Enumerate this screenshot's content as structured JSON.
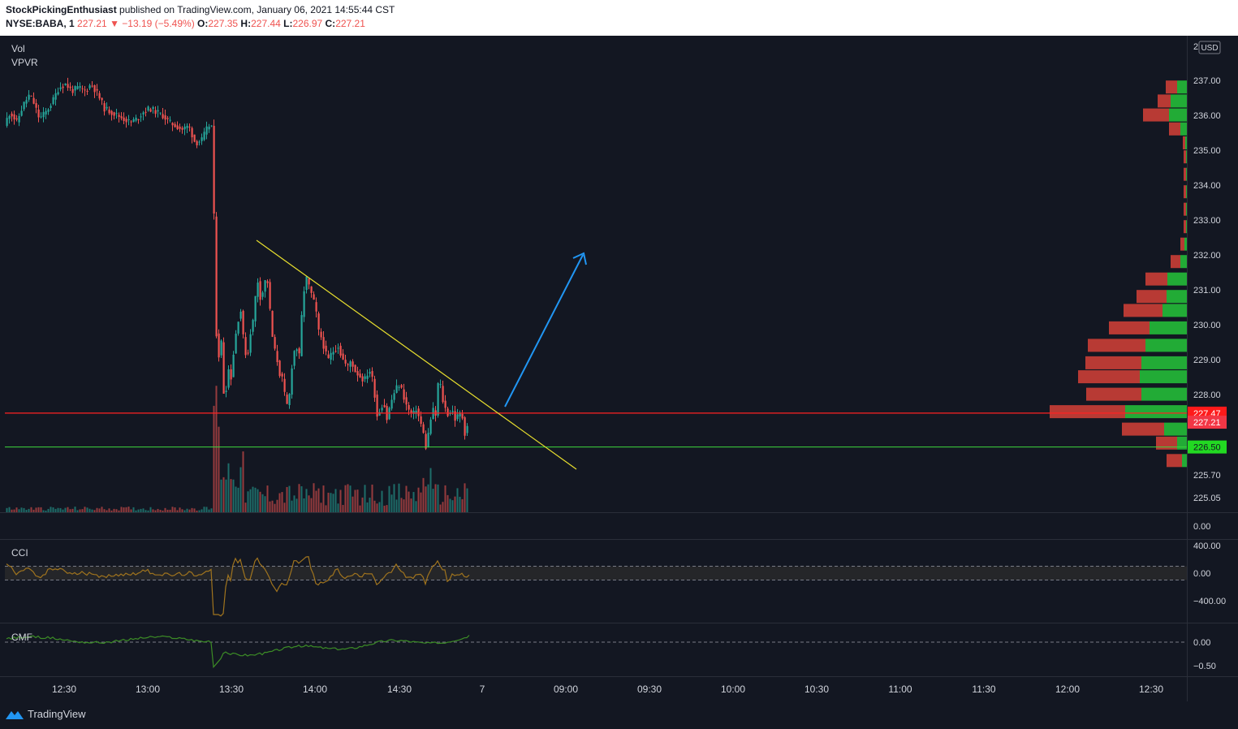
{
  "header": {
    "author": "StockPickingEnthusiast",
    "published": "published on TradingView.com, January 06, 2021 14:55:44 CST",
    "symbol": "NYSE:BABA, 1",
    "last": "227.21",
    "change": "▼ −13.19 (−5.49%)",
    "o_label": "O:",
    "o_value": "227.35",
    "h_label": "H:",
    "h_value": "227.44",
    "l_label": "L:",
    "l_value": "226.97",
    "c_label": "C:",
    "c_value": "227.21"
  },
  "indicators": {
    "vol": "Vol",
    "vpvr": "VPVR",
    "cci": "CCI",
    "cmf": "CMF"
  },
  "currency": "USD",
  "footer": {
    "brand": "TradingView",
    "logo_icon": "tradingview-logo-icon"
  },
  "colors": {
    "up": "#26a69a",
    "down": "#ef5350",
    "vp_up": "#22ab36",
    "vp_down": "#b83a34",
    "resistance": "#ff2222",
    "support": "#3ed63e",
    "trendline": "#e8df2e",
    "arrow": "#2196f3",
    "cci": "#a0741e",
    "cmf": "#3c8c26"
  },
  "chart_data": {
    "type": "candlestick",
    "price_axis": {
      "ticks": [
        "237.00",
        "236.00",
        "235.00",
        "234.00",
        "233.00",
        "232.00",
        "231.00",
        "230.00",
        "229.00",
        "228.00",
        "225.70",
        "225.05"
      ],
      "top_tick": "2",
      "ylim": [
        225.0,
        237.3
      ]
    },
    "time_axis": {
      "ticks": [
        "12:30",
        "13:00",
        "13:30",
        "14:00",
        "14:30",
        "7",
        "09:00",
        "09:30",
        "10:00",
        "10:30",
        "11:00",
        "11:30",
        "12:00",
        "12:30"
      ]
    },
    "price_path": [
      [
        0,
        235.2
      ],
      [
        6,
        235.8
      ],
      [
        12,
        236.1
      ],
      [
        20,
        235.8
      ],
      [
        28,
        236.3
      ],
      [
        36,
        236.6
      ],
      [
        42,
        236.3
      ],
      [
        48,
        235.9
      ],
      [
        56,
        236.1
      ],
      [
        64,
        236.4
      ],
      [
        72,
        236.8
      ],
      [
        80,
        236.9
      ],
      [
        88,
        236.7
      ],
      [
        96,
        236.8
      ],
      [
        104,
        236.7
      ],
      [
        112,
        236.9
      ],
      [
        120,
        236.6
      ],
      [
        128,
        236.2
      ],
      [
        136,
        236.1
      ],
      [
        144,
        236.0
      ],
      [
        152,
        235.9
      ],
      [
        160,
        235.8
      ],
      [
        168,
        235.9
      ],
      [
        176,
        236.1
      ],
      [
        184,
        236.2
      ],
      [
        192,
        236.1
      ],
      [
        200,
        236.0
      ],
      [
        208,
        235.8
      ],
      [
        216,
        235.7
      ],
      [
        224,
        235.6
      ],
      [
        232,
        235.7
      ],
      [
        240,
        235.2
      ],
      [
        248,
        235.3
      ],
      [
        256,
        235.7
      ],
      [
        262,
        235.7
      ],
      [
        264,
        230.5
      ],
      [
        268,
        229.0
      ],
      [
        272,
        229.5
      ],
      [
        276,
        227.6
      ],
      [
        280,
        228.8
      ],
      [
        284,
        228.5
      ],
      [
        288,
        229.4
      ],
      [
        292,
        230.1
      ],
      [
        296,
        230.4
      ],
      [
        300,
        229.4
      ],
      [
        304,
        229.0
      ],
      [
        308,
        229.8
      ],
      [
        312,
        230.2
      ],
      [
        316,
        231.4
      ],
      [
        320,
        230.8
      ],
      [
        324,
        231.0
      ],
      [
        328,
        231.5
      ],
      [
        332,
        230.4
      ],
      [
        336,
        229.4
      ],
      [
        340,
        229.1
      ],
      [
        344,
        228.6
      ],
      [
        348,
        228.4
      ],
      [
        352,
        227.6
      ],
      [
        356,
        228.0
      ],
      [
        360,
        229.1
      ],
      [
        364,
        229.4
      ],
      [
        368,
        229.1
      ],
      [
        372,
        230.6
      ],
      [
        376,
        231.4
      ],
      [
        380,
        231.1
      ],
      [
        384,
        230.8
      ],
      [
        388,
        230.5
      ],
      [
        392,
        229.8
      ],
      [
        396,
        229.6
      ],
      [
        400,
        229.2
      ],
      [
        404,
        229.0
      ],
      [
        408,
        229.2
      ],
      [
        412,
        229.3
      ],
      [
        416,
        229.4
      ],
      [
        420,
        229.1
      ],
      [
        424,
        228.9
      ],
      [
        428,
        228.8
      ],
      [
        432,
        229.0
      ],
      [
        436,
        228.7
      ],
      [
        440,
        228.6
      ],
      [
        444,
        228.5
      ],
      [
        448,
        228.4
      ],
      [
        452,
        228.6
      ],
      [
        456,
        228.7
      ],
      [
        460,
        228.2
      ],
      [
        464,
        227.4
      ],
      [
        468,
        227.6
      ],
      [
        472,
        227.8
      ],
      [
        476,
        227.3
      ],
      [
        480,
        227.7
      ],
      [
        484,
        228.0
      ],
      [
        488,
        228.2
      ],
      [
        492,
        228.3
      ],
      [
        496,
        228.0
      ],
      [
        500,
        227.7
      ],
      [
        504,
        227.5
      ],
      [
        508,
        227.4
      ],
      [
        512,
        227.6
      ],
      [
        516,
        227.3
      ],
      [
        520,
        227.0
      ],
      [
        524,
        226.5
      ],
      [
        528,
        227.0
      ],
      [
        532,
        227.6
      ],
      [
        536,
        227.4
      ],
      [
        540,
        228.6
      ],
      [
        544,
        227.9
      ],
      [
        548,
        227.6
      ],
      [
        552,
        227.4
      ],
      [
        556,
        227.6
      ],
      [
        560,
        227.3
      ],
      [
        564,
        227.4
      ],
      [
        568,
        227.5
      ],
      [
        572,
        226.9
      ],
      [
        576,
        227.2
      ]
    ],
    "volume_profile": [
      {
        "price": 236.8,
        "up": 12,
        "down": 14
      },
      {
        "price": 236.4,
        "up": 20,
        "down": 16
      },
      {
        "price": 236.0,
        "up": 22,
        "down": 32
      },
      {
        "price": 235.6,
        "up": 8,
        "down": 14
      },
      {
        "price": 235.2,
        "up": 2,
        "down": 3
      },
      {
        "price": 234.8,
        "up": 1,
        "down": 3
      },
      {
        "price": 234.3,
        "up": 1,
        "down": 3
      },
      {
        "price": 233.8,
        "up": 1,
        "down": 3
      },
      {
        "price": 233.3,
        "up": 1,
        "down": 3
      },
      {
        "price": 232.8,
        "up": 1,
        "down": 3
      },
      {
        "price": 232.3,
        "up": 3,
        "down": 5
      },
      {
        "price": 231.8,
        "up": 8,
        "down": 12
      },
      {
        "price": 231.3,
        "up": 24,
        "down": 27
      },
      {
        "price": 230.8,
        "up": 25,
        "down": 37
      },
      {
        "price": 230.4,
        "up": 30,
        "down": 48
      },
      {
        "price": 229.9,
        "up": 46,
        "down": 50
      },
      {
        "price": 229.4,
        "up": 51,
        "down": 71
      },
      {
        "price": 228.9,
        "up": 56,
        "down": 69
      },
      {
        "price": 228.5,
        "up": 58,
        "down": 76
      },
      {
        "price": 228.0,
        "up": 56,
        "down": 68
      },
      {
        "price": 227.5,
        "up": 76,
        "down": 93
      },
      {
        "price": 227.0,
        "up": 28,
        "down": 52
      },
      {
        "price": 226.6,
        "up": 12,
        "down": 26
      },
      {
        "price": 226.1,
        "up": 6,
        "down": 19
      }
    ],
    "price_markers": [
      {
        "price": 227.47,
        "label": "227.47",
        "kind": "resistance"
      },
      {
        "price": 227.21,
        "label": "227.21",
        "kind": "last"
      },
      {
        "price": 226.5,
        "label": "226.50",
        "kind": "support"
      }
    ],
    "vol_axis": {
      "ticks": [
        "0.00"
      ]
    },
    "cci": {
      "name": "CCI",
      "ticks": [
        "400.00",
        "0.00",
        "−400.00"
      ],
      "bands": [
        100,
        -100
      ],
      "ylim": [
        -450,
        450
      ]
    },
    "cmf": {
      "name": "CMF",
      "ticks": [
        "0.00",
        "−0.50"
      ],
      "ylim": [
        -0.6,
        0.25
      ]
    }
  }
}
